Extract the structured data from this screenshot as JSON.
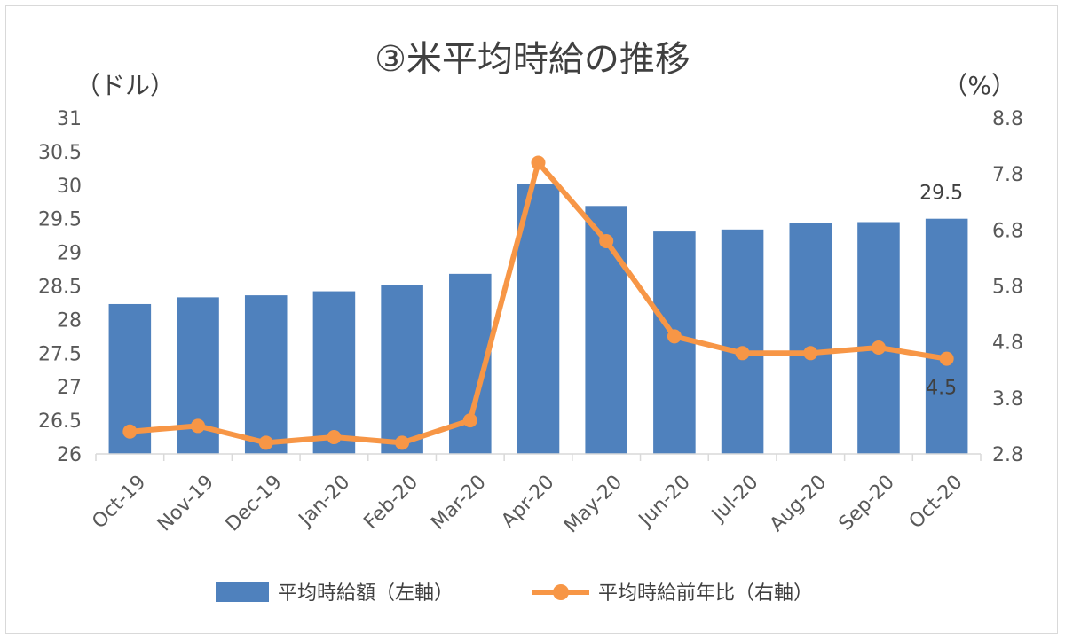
{
  "chart_data": {
    "type": "bar+line",
    "title": "③米平均時給の推移",
    "y_left_unit": "（ドル）",
    "y_right_unit": "（%）",
    "categories": [
      "Oct-19",
      "Nov-19",
      "Dec-19",
      "Jan-20",
      "Feb-20",
      "Mar-20",
      "Apr-20",
      "May-20",
      "Jun-20",
      "Jul-20",
      "Aug-20",
      "Sep-20",
      "Oct-20"
    ],
    "series": [
      {
        "name": "平均時給額（左軸）",
        "type": "bar",
        "axis": "left",
        "color": "#4f81bd",
        "values": [
          28.23,
          28.33,
          28.36,
          28.42,
          28.51,
          28.68,
          30.02,
          29.69,
          29.31,
          29.34,
          29.44,
          29.45,
          29.5
        ]
      },
      {
        "name": "平均時給前年比（右軸）",
        "type": "line",
        "axis": "right",
        "color": "#f79646",
        "values": [
          3.2,
          3.3,
          3.0,
          3.1,
          3.0,
          3.4,
          8.0,
          6.6,
          4.9,
          4.6,
          4.6,
          4.7,
          4.5
        ]
      }
    ],
    "y_left": {
      "min": 26,
      "max": 31,
      "ticks": [
        "26",
        "26.5",
        "27",
        "27.5",
        "28",
        "28.5",
        "29",
        "29.5",
        "30",
        "30.5",
        "31"
      ]
    },
    "y_right": {
      "min": 2.8,
      "max": 8.8,
      "ticks": [
        "2.8",
        "3.8",
        "4.8",
        "5.8",
        "6.8",
        "7.8",
        "8.8"
      ]
    },
    "data_labels": {
      "bar_last": "29.5",
      "line_last": "4.5"
    },
    "legend_position": "bottom",
    "grid": false
  }
}
